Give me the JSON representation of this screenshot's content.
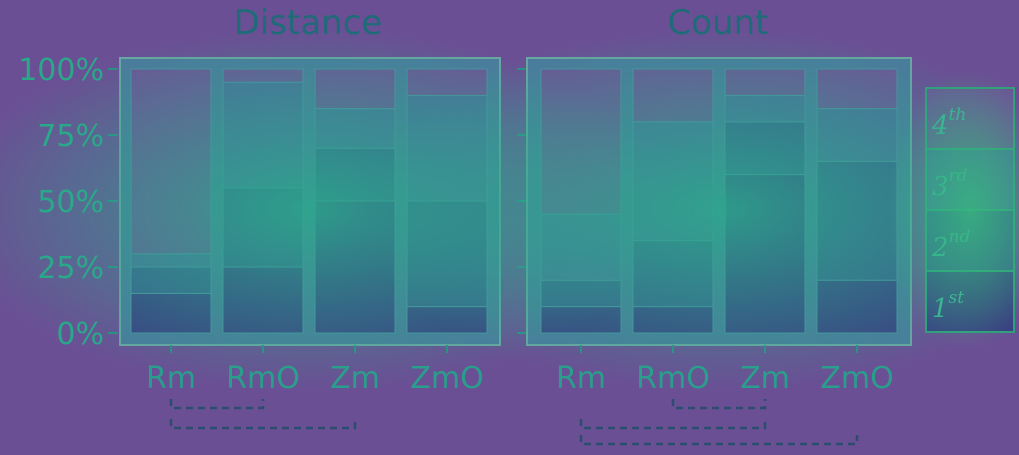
{
  "chart_data": [
    {
      "type": "bar",
      "stacked": true,
      "title": "Distance",
      "categories": [
        "Rm",
        "RmO",
        "Zm",
        "ZmO"
      ],
      "y_ticks": [
        "0%",
        "25%",
        "50%",
        "75%",
        "100%"
      ],
      "ylim": [
        0,
        100
      ],
      "series": [
        {
          "key": "1st",
          "values": [
            15,
            25,
            50,
            10
          ]
        },
        {
          "key": "2nd",
          "values": [
            10,
            30,
            20,
            40
          ]
        },
        {
          "key": "3rd",
          "values": [
            5,
            40,
            15,
            40
          ]
        },
        {
          "key": "4th",
          "values": [
            70,
            5,
            15,
            10
          ]
        }
      ],
      "significance": [
        {
          "from": 0,
          "to": 1,
          "level": 0
        },
        {
          "from": 0,
          "to": 2,
          "level": 1
        }
      ]
    },
    {
      "type": "bar",
      "stacked": true,
      "title": "Count",
      "categories": [
        "Rm",
        "RmO",
        "Zm",
        "ZmO"
      ],
      "y_ticks": [
        "0%",
        "25%",
        "50%",
        "75%",
        "100%"
      ],
      "ylim": [
        0,
        100
      ],
      "series": [
        {
          "key": "1st",
          "values": [
            10,
            10,
            60,
            20
          ]
        },
        {
          "key": "2nd",
          "values": [
            10,
            25,
            20,
            45
          ]
        },
        {
          "key": "3rd",
          "values": [
            25,
            45,
            10,
            20
          ]
        },
        {
          "key": "4th",
          "values": [
            55,
            20,
            10,
            15
          ]
        }
      ],
      "significance": [
        {
          "from": 1,
          "to": 2,
          "level": 0
        },
        {
          "from": 0,
          "to": 2,
          "level": 1
        },
        {
          "from": 0,
          "to": 3,
          "level": 2
        }
      ]
    }
  ],
  "legend": {
    "placement": "right",
    "items": [
      {
        "key": "4th",
        "base": "4",
        "sup": "th"
      },
      {
        "key": "3rd",
        "base": "3",
        "sup": "rd"
      },
      {
        "key": "2nd",
        "base": "2",
        "sup": "nd"
      },
      {
        "key": "1st",
        "base": "1",
        "sup": "st"
      }
    ]
  },
  "colors": {
    "1st": "#3a3f82",
    "2nd": "#3b5e8d",
    "3rd": "#4a6f9a",
    "4th": "#6a5796",
    "panel": "#4b7a9c",
    "frame": "#6aa6a2"
  }
}
